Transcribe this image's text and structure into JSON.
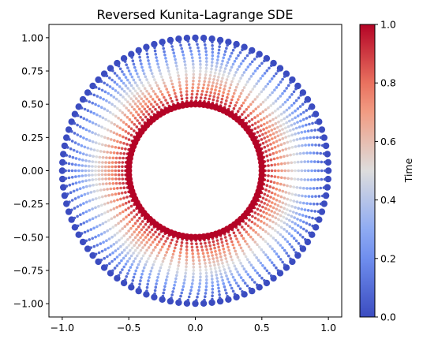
{
  "chart_data": {
    "type": "scatter",
    "title": "Reversed Kunita-Lagrange SDE",
    "xlabel": "",
    "ylabel": "",
    "xlim": [
      -1.1,
      1.1
    ],
    "ylim": [
      -1.1,
      1.1
    ],
    "x_ticks": [
      -1.0,
      -0.5,
      0.0,
      0.5,
      1.0
    ],
    "x_tick_labels": [
      "−1.0",
      "−0.5",
      "0.0",
      "0.5",
      "1.0"
    ],
    "y_ticks": [
      -1.0,
      -0.75,
      -0.5,
      -0.25,
      0.0,
      0.25,
      0.5,
      0.75,
      1.0
    ],
    "y_tick_labels": [
      "−1.00",
      "−0.75",
      "−0.50",
      "−0.25",
      "0.00",
      "0.25",
      "0.50",
      "0.75",
      "1.00"
    ],
    "grid": false,
    "description_series": {
      "n_trajectories": 100,
      "start_radius": 1.0,
      "end_radius": 0.5,
      "time_steps": 20
    },
    "colorbar": {
      "label": "Time",
      "colormap": "coolwarm",
      "range": [
        0.0,
        1.0
      ],
      "ticks": [
        0.0,
        0.2,
        0.4,
        0.6,
        0.8,
        1.0
      ],
      "tick_labels": [
        "0.0",
        "0.2",
        "0.4",
        "0.6",
        "0.8",
        "1.0"
      ]
    }
  }
}
